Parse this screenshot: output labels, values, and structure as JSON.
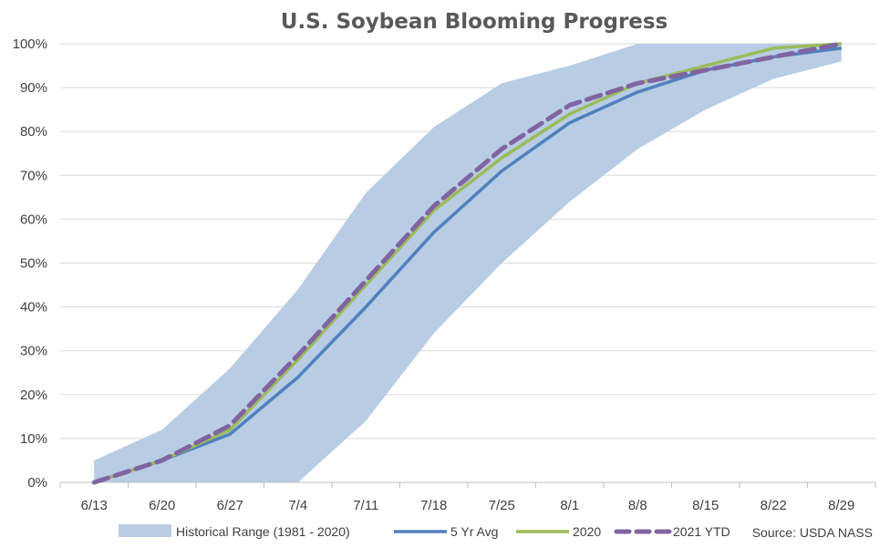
{
  "chart_data": {
    "type": "line",
    "title": "U.S. Soybean Blooming Progress",
    "source": "Source: USDA NASS",
    "categories": [
      "6/13",
      "6/20",
      "6/27",
      "7/4",
      "7/11",
      "7/18",
      "7/25",
      "8/1",
      "8/8",
      "8/15",
      "8/22",
      "8/29"
    ],
    "y_ticks": [
      "0%",
      "10%",
      "20%",
      "30%",
      "40%",
      "50%",
      "60%",
      "70%",
      "80%",
      "90%",
      "100%"
    ],
    "ylim": [
      0,
      100
    ],
    "grid": "horizontal",
    "legend_position": "bottom",
    "range": {
      "name": "Historical Range (1981 - 2020)",
      "color": "#b8cce4",
      "low": [
        0,
        0,
        0,
        0,
        14,
        34,
        50,
        64,
        76,
        85,
        92,
        96
      ],
      "high": [
        5,
        12,
        26,
        44,
        66,
        81,
        91,
        95,
        100,
        100,
        100,
        100
      ]
    },
    "series": [
      {
        "name": "5 Yr Avg",
        "color": "#4f81bd",
        "style": "solid",
        "values": [
          0,
          5,
          11,
          24,
          40,
          57,
          71,
          82,
          89,
          94,
          97,
          99
        ]
      },
      {
        "name": "2020",
        "color": "#9bbb59",
        "style": "solid",
        "values": [
          0,
          5,
          12,
          28,
          45,
          62,
          74,
          84,
          91,
          95,
          99,
          100
        ]
      },
      {
        "name": "2021 YTD",
        "color": "#8064a2",
        "style": "dashed",
        "values": [
          0,
          5,
          13,
          29,
          46,
          63,
          76,
          86,
          91,
          94,
          97,
          100
        ]
      }
    ]
  }
}
